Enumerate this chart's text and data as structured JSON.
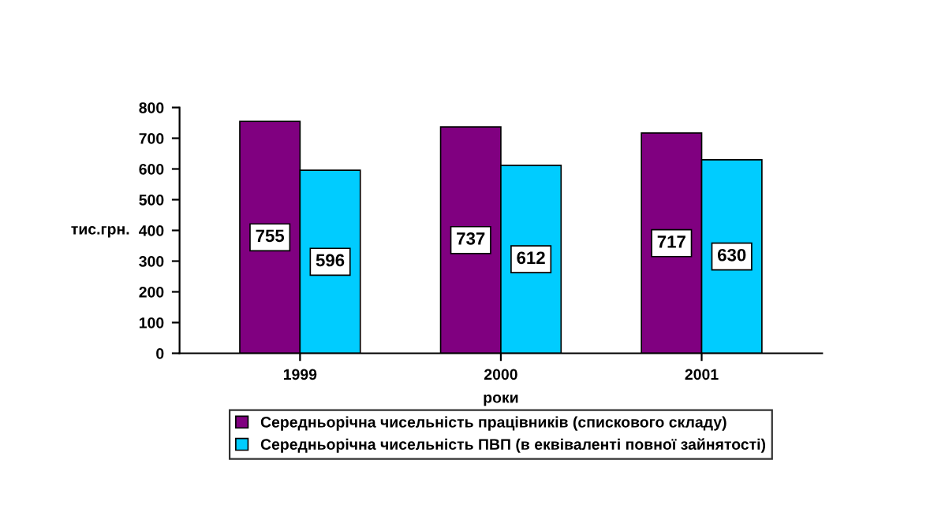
{
  "chart_data": {
    "type": "bar",
    "xlabel": "роки",
    "ylabel": "тис.грн.",
    "categories": [
      "1999",
      "2000",
      "2001"
    ],
    "series": [
      {
        "name": "Середньорічна чисельність працівників (спискового складу)",
        "color": "#800080",
        "values": [
          755,
          737,
          717
        ]
      },
      {
        "name": "Середньорічна чисельність ПВП (в еквіваленті повної зайнятості)",
        "color": "#00ccff",
        "values": [
          596,
          612,
          630
        ]
      }
    ],
    "ylim": [
      0,
      800
    ],
    "yticks": [
      0,
      100,
      200,
      300,
      400,
      500,
      600,
      700,
      800
    ],
    "data_labels": true,
    "grid": false,
    "legend": "bottom"
  }
}
